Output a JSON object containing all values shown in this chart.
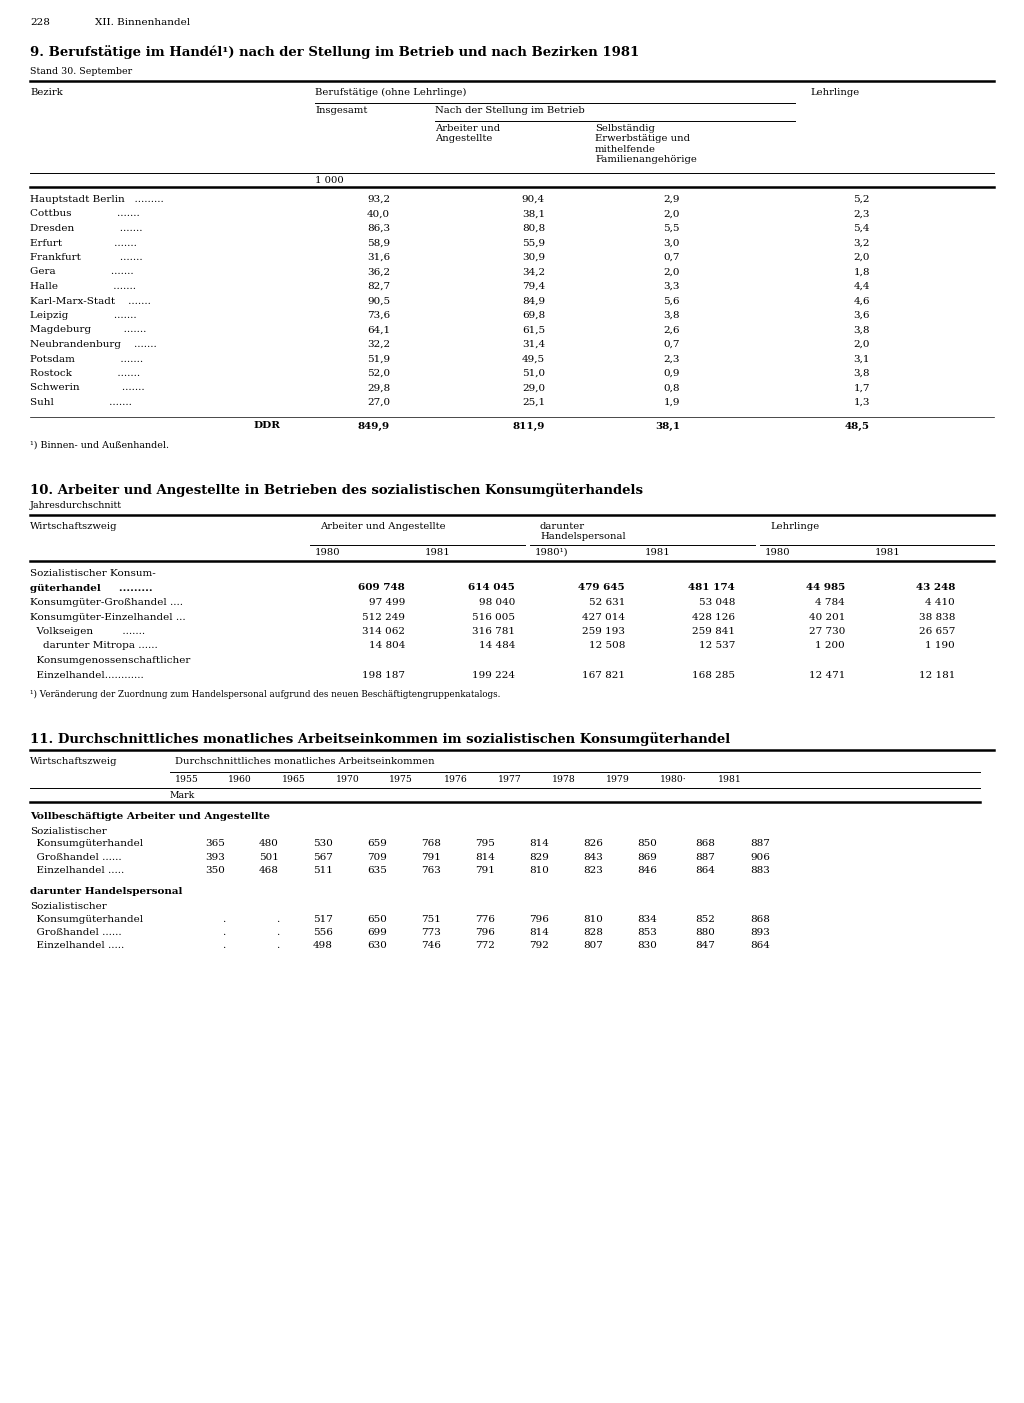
{
  "page_num": "228",
  "chapter": "XII. Binnenhandel",
  "bg_color": "#ffffff",
  "table1": {
    "title": "9. Berufstätige im Handél¹) nach der Stellung im Betrieb und nach Bezirken 1981",
    "subtitle": "Stand 30. September",
    "unit": "1 000",
    "rows": [
      [
        "Hauptstadt Berlin   .........",
        "93,2",
        "90,4",
        "2,9",
        "5,2"
      ],
      [
        "Cottbus              .......",
        "40,0",
        "38,1",
        "2,0",
        "2,3"
      ],
      [
        "Dresden              .......",
        "86,3",
        "80,8",
        "5,5",
        "5,4"
      ],
      [
        "Erfurt                .......",
        "58,9",
        "55,9",
        "3,0",
        "3,2"
      ],
      [
        "Frankfurt            .......",
        "31,6",
        "30,9",
        "0,7",
        "2,0"
      ],
      [
        "Gera                 .......",
        "36,2",
        "34,2",
        "2,0",
        "1,8"
      ],
      [
        "Halle                 .......",
        "82,7",
        "79,4",
        "3,3",
        "4,4"
      ],
      [
        "Karl-Marx-Stadt    .......",
        "90,5",
        "84,9",
        "5,6",
        "4,6"
      ],
      [
        "Leipzig              .......",
        "73,6",
        "69,8",
        "3,8",
        "3,6"
      ],
      [
        "Magdeburg          .......",
        "64,1",
        "61,5",
        "2,6",
        "3,8"
      ],
      [
        "Neubrandenburg    .......",
        "32,2",
        "31,4",
        "0,7",
        "2,0"
      ],
      [
        "Potsdam              .......",
        "51,9",
        "49,5",
        "2,3",
        "3,1"
      ],
      [
        "Rostock              .......",
        "52,0",
        "51,0",
        "0,9",
        "3,8"
      ],
      [
        "Schwerin             .......",
        "29,8",
        "29,0",
        "0,8",
        "1,7"
      ],
      [
        "Suhl                 .......",
        "27,0",
        "25,1",
        "1,9",
        "1,3"
      ]
    ],
    "total_row": [
      "DDR",
      "849,9",
      "811,9",
      "38,1",
      "48,5"
    ],
    "footnote": "¹) Binnen- und Außenhandel."
  },
  "table2": {
    "title": "10. Arbeiter und Angestellte in Betrieben des sozialistischen Konsumgüterhandels",
    "subtitle": "Jahresdurchschnitt",
    "rows": [
      [
        "Sozialistischer Konsum-",
        "",
        "",
        "",
        "",
        "",
        ""
      ],
      [
        "güterhandel     .........",
        "609 748",
        "614 045",
        "479 645",
        "481 174",
        "44 985",
        "43 248"
      ],
      [
        "Konsumgüter-Großhandel ....",
        "97 499",
        "98 040",
        "52 631",
        "53 048",
        "4 784",
        "4 410"
      ],
      [
        "Konsumgüter-Einzelhandel ...",
        "512 249",
        "516 005",
        "427 014",
        "428 126",
        "40 201",
        "38 838"
      ],
      [
        "  Volkseigen         .......",
        "314 062",
        "316 781",
        "259 193",
        "259 841",
        "27 730",
        "26 657"
      ],
      [
        "    darunter Mitropa ......",
        "14 804",
        "14 484",
        "12 508",
        "12 537",
        "1 200",
        "1 190"
      ],
      [
        "  Konsumgenossenschaftlicher",
        "",
        "",
        "",
        "",
        "",
        ""
      ],
      [
        "  Einzelhandel............",
        "198 187",
        "199 224",
        "167 821",
        "168 285",
        "12 471",
        "12 181"
      ]
    ],
    "bold_rows": [
      1
    ],
    "footnote": "¹) Veränderung der Zuordnung zum Handelspersonal aufgrund des neuen Beschäftigtengruppenkatalogs."
  },
  "table3": {
    "title": "11. Durchschnittliches monatliches Arbeitseinkommen im sozialistischen Konsumgüterhandel",
    "years": [
      "1955",
      "1960",
      "1965",
      "1970",
      "1975",
      "1976",
      "1977",
      "1978",
      "1979",
      "1980·",
      "1981"
    ],
    "unit": "Mark",
    "section1_title": "Vollbeschäftigte Arbeiter und Angestellte",
    "section1_sub": "Sozialistischer",
    "section1_rows": [
      [
        "  Konsumgüterhandel",
        "365",
        "480",
        "530",
        "659",
        "768",
        "795",
        "814",
        "826",
        "850",
        "868",
        "887"
      ],
      [
        "  Großhandel ......",
        "393",
        "501",
        "567",
        "709",
        "791",
        "814",
        "829",
        "843",
        "869",
        "887",
        "906"
      ],
      [
        "  Einzelhandel .....",
        "350",
        "468",
        "511",
        "635",
        "763",
        "791",
        "810",
        "823",
        "846",
        "864",
        "883"
      ]
    ],
    "section2_title": "darunter Handelspersonal",
    "section2_sub": "Sozialistischer",
    "section2_rows": [
      [
        "  Konsumgüterhandel",
        ".",
        ".",
        "517",
        "650",
        "751",
        "776",
        "796",
        "810",
        "834",
        "852",
        "868"
      ],
      [
        "  Großhandel ......",
        ".",
        ".",
        "556",
        "699",
        "773",
        "796",
        "814",
        "828",
        "853",
        "880",
        "893"
      ],
      [
        "  Einzelhandel .....",
        ".",
        ".",
        "498",
        "630",
        "746",
        "772",
        "792",
        "807",
        "830",
        "847",
        "864"
      ]
    ]
  }
}
